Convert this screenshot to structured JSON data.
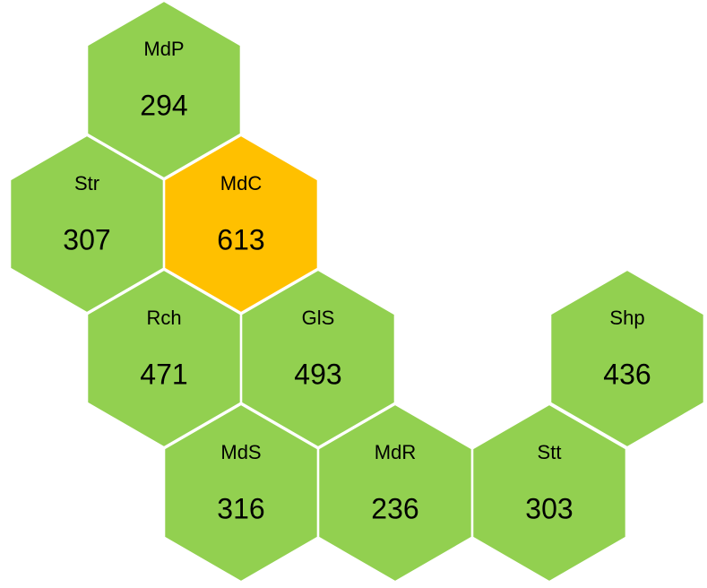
{
  "nodes": [
    {
      "label": "MdP",
      "value": 294,
      "color": "#92d050"
    },
    {
      "label": "Str",
      "value": 307,
      "color": "#92d050"
    },
    {
      "label": "MdC",
      "value": 613,
      "color": "#ffc000"
    },
    {
      "label": "Rch",
      "value": 471,
      "color": "#92d050"
    },
    {
      "label": "GlS",
      "value": 493,
      "color": "#92d050"
    },
    {
      "label": "Shp",
      "value": 436,
      "color": "#92d050"
    },
    {
      "label": "MdS",
      "value": 316,
      "color": "#92d050"
    },
    {
      "label": "MdR",
      "value": 236,
      "color": "#92d050"
    },
    {
      "label": "Stt",
      "value": 303,
      "color": "#92d050"
    }
  ]
}
